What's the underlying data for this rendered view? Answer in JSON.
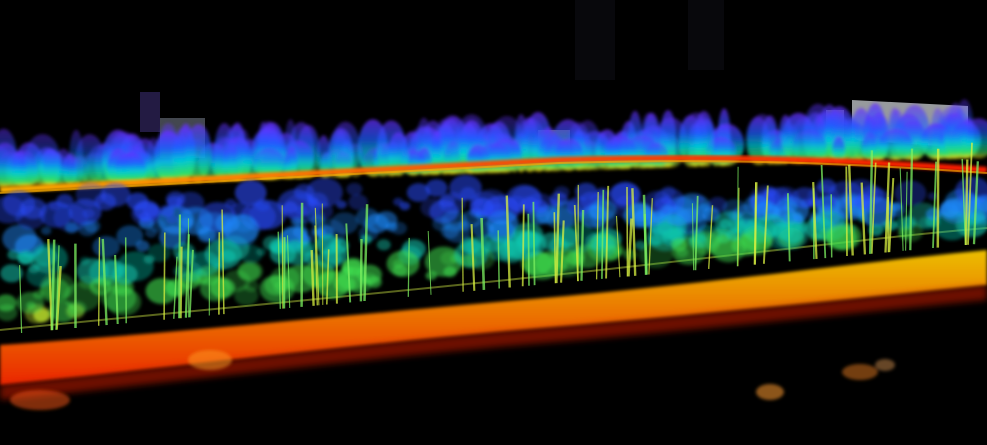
{
  "scene": {
    "background": "#000000",
    "palette": {
      "ground_red": "#ff2a00",
      "ground_orange": "#ff7a00",
      "ground_yellow": "#ffd000",
      "mid_green": "#30e060",
      "leaf_cyan": "#00c8d8",
      "leaf_blue": "#1e5cff",
      "top_purple": "#6a2cff",
      "structure_gray": "#bfc3c6"
    }
  }
}
